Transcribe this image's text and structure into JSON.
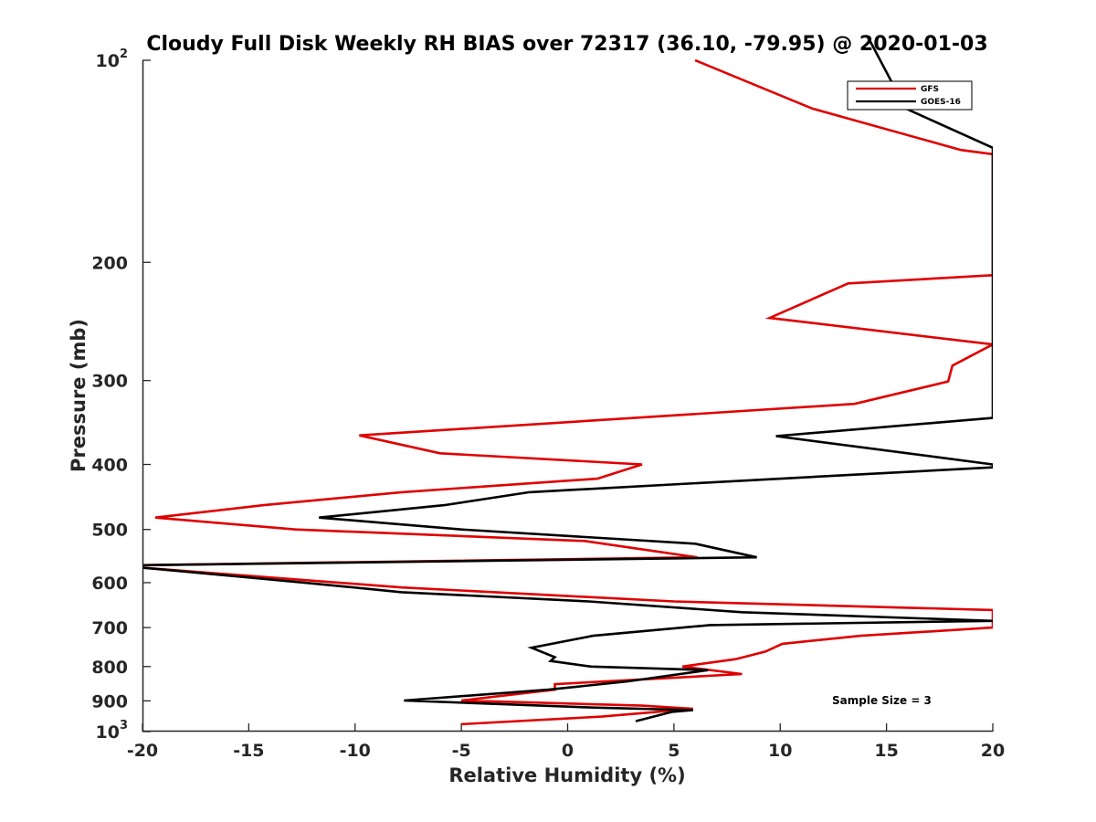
{
  "chart_data": {
    "type": "line",
    "title": "Cloudy Full Disk Weekly RH BIAS over 72317 (36.10, -79.95) @ 2020-01-03",
    "xlabel": "Relative Humidity (%)",
    "ylabel": "Pressure (mb)",
    "xlim": [
      -20,
      20
    ],
    "ylim": [
      100,
      1000
    ],
    "yscale": "log",
    "y_reversed": true,
    "grid": false,
    "legend_position": "top-right",
    "x_ticks": [
      -20,
      -15,
      -10,
      -5,
      0,
      5,
      10,
      15,
      20
    ],
    "x_tick_labels": [
      "-20",
      "-15",
      "-10",
      "-5",
      "0",
      "5",
      "10",
      "15",
      "20"
    ],
    "y_ticks": [
      {
        "value": 100,
        "base": "10",
        "exp": "2"
      },
      {
        "value": 200,
        "label": "200"
      },
      {
        "value": 300,
        "label": "300"
      },
      {
        "value": 400,
        "label": "400"
      },
      {
        "value": 500,
        "label": "500"
      },
      {
        "value": 600,
        "label": "600"
      },
      {
        "value": 700,
        "label": "700"
      },
      {
        "value": 800,
        "label": "800"
      },
      {
        "value": 900,
        "label": "900"
      },
      {
        "value": 1000,
        "base": "10",
        "exp": "3"
      }
    ],
    "series": [
      {
        "name": "GFS",
        "color": "#e00000",
        "points": [
          [
            6,
            100
          ],
          [
            11.5,
            118
          ],
          [
            18.5,
            136
          ],
          [
            20,
            138
          ],
          [
            20,
            140
          ],
          [
            20,
            209
          ],
          [
            13.2,
            215
          ],
          [
            9.5,
            242
          ],
          [
            20,
            265
          ],
          [
            18.1,
            285
          ],
          [
            17.9,
            301
          ],
          [
            13.5,
            325
          ],
          [
            -9.8,
            362
          ],
          [
            -6,
            385
          ],
          [
            3.5,
            400
          ],
          [
            1.4,
            420
          ],
          [
            -7.8,
            440
          ],
          [
            -14.3,
            460
          ],
          [
            -19.4,
            480
          ],
          [
            -12.8,
            500
          ],
          [
            0.8,
            520
          ],
          [
            6.1,
            550
          ],
          [
            -20,
            565
          ],
          [
            -20,
            570
          ],
          [
            -7.8,
            610
          ],
          [
            5,
            640
          ],
          [
            20,
            659
          ],
          [
            20,
            700
          ],
          [
            13.8,
            720
          ],
          [
            10.1,
            740
          ],
          [
            9.3,
            760
          ],
          [
            7.9,
            780
          ],
          [
            5.4,
            800
          ],
          [
            8.2,
            821
          ],
          [
            -0.6,
            850
          ],
          [
            -0.6,
            866
          ],
          [
            -5,
            899
          ],
          [
            3.5,
            915
          ],
          [
            5.9,
            925
          ],
          [
            1.6,
            950
          ],
          [
            -5,
            975
          ]
        ]
      },
      {
        "name": "GOES-16",
        "color": "#000000",
        "points": [
          [
            14.1,
            92
          ],
          [
            15.9,
            118
          ],
          [
            20,
            135
          ],
          [
            20,
            341
          ],
          [
            9.8,
            363
          ],
          [
            20,
            400
          ],
          [
            20,
            404
          ],
          [
            13,
            415
          ],
          [
            -1.8,
            440
          ],
          [
            -5.8,
            460
          ],
          [
            -11.7,
            480
          ],
          [
            -5,
            500
          ],
          [
            6,
            525
          ],
          [
            8.9,
            550
          ],
          [
            -20,
            565
          ],
          [
            -20,
            570
          ],
          [
            -12.4,
            600
          ],
          [
            -7.8,
            620
          ],
          [
            1,
            640
          ],
          [
            8.2,
            664
          ],
          [
            20,
            684
          ],
          [
            6.7,
            694
          ],
          [
            1.2,
            720
          ],
          [
            -1.7,
            750
          ],
          [
            -0.6,
            775
          ],
          [
            -0.8,
            785
          ],
          [
            1.1,
            800
          ],
          [
            6.6,
            810
          ],
          [
            2.8,
            842
          ],
          [
            -0.9,
            866
          ],
          [
            -7.7,
            899
          ],
          [
            1.2,
            921
          ],
          [
            5.9,
            929
          ],
          [
            4.9,
            935
          ],
          [
            3.2,
            965
          ]
        ]
      }
    ],
    "annotations": [
      {
        "text": "Sample Size = 3"
      }
    ]
  }
}
